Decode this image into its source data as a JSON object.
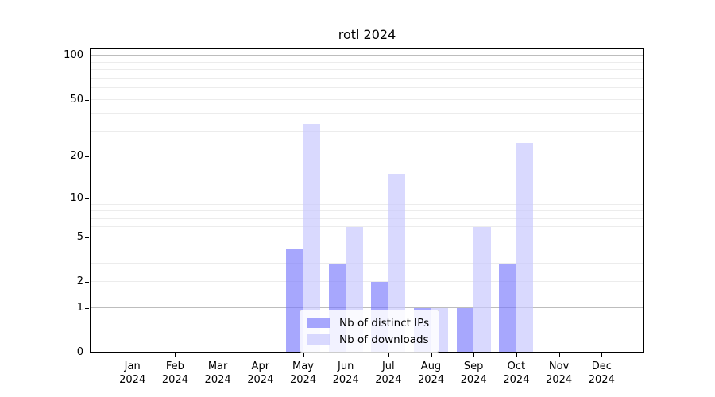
{
  "chart_data": {
    "type": "bar",
    "title": "rotl 2024",
    "categories": [
      "Jan",
      "Feb",
      "Mar",
      "Apr",
      "May",
      "Jun",
      "Jul",
      "Aug",
      "Sep",
      "Oct",
      "Nov",
      "Dec"
    ],
    "year": "2024",
    "series": [
      {
        "name": "Nb of distinct IPs",
        "color": "rgba(121,121,252,0.66)",
        "values": [
          0,
          0,
          0,
          0,
          4,
          3,
          2,
          1,
          1,
          3,
          0,
          0
        ]
      },
      {
        "name": "Nb of downloads",
        "color": "rgba(199,199,253,0.68)",
        "values": [
          0,
          0,
          0,
          0,
          34,
          6,
          15,
          1,
          6,
          25,
          0,
          0
        ]
      }
    ],
    "yscale": "log1p",
    "ylim": [
      0,
      112
    ],
    "yticks": [
      0,
      1,
      2,
      5,
      10,
      20,
      50,
      100
    ],
    "grid_major": [
      1,
      10,
      100
    ],
    "grid_minor": [
      2,
      3,
      4,
      5,
      6,
      7,
      8,
      9,
      20,
      30,
      40,
      50,
      60,
      70,
      80,
      90
    ],
    "legend_position": "lower center",
    "grid_on": true,
    "colors": {
      "grid_major": "#bdbdbd",
      "grid_minor": "#ececec",
      "spine": "#000000",
      "text": "#000000"
    }
  }
}
